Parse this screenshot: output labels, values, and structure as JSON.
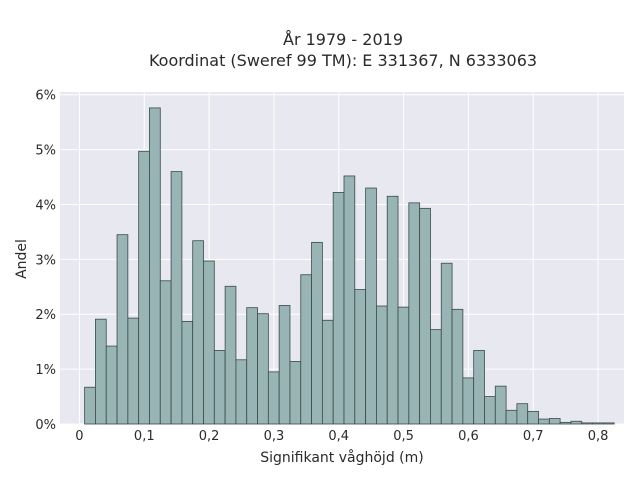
{
  "chart_data": {
    "type": "bar",
    "title_line1": "År 1979 - 2019",
    "title_line2": "Koordinat (Sweref 99 TM): E 331367, N 6333063",
    "xlabel": "Signifikant våghöjd (m)",
    "ylabel": "Andel",
    "bin_width": 0.01667,
    "bin_start": 0.008,
    "xlim": [
      -0.03,
      0.84
    ],
    "ylim": [
      0,
      6.05
    ],
    "x_ticks": [
      0,
      0.1,
      0.2,
      0.3,
      0.4,
      0.5,
      0.6,
      0.7,
      0.8
    ],
    "x_tick_labels": [
      "0",
      "0,1",
      "0,2",
      "0,3",
      "0,4",
      "0,5",
      "0,6",
      "0,7",
      "0,8"
    ],
    "y_ticks": [
      0,
      1,
      2,
      3,
      4,
      5,
      6
    ],
    "y_tick_labels": [
      "0%",
      "1%",
      "2%",
      "3%",
      "4%",
      "5%",
      "6%"
    ],
    "grid": true,
    "colors": {
      "bar_fill": "#98b4b4",
      "bar_stroke": "#3a4a4a",
      "plot_bg": "#e8e8f0",
      "grid": "#ffffff"
    },
    "values": [
      0.67,
      1.91,
      1.42,
      3.45,
      1.93,
      4.97,
      5.76,
      2.61,
      4.6,
      1.87,
      3.34,
      2.97,
      1.34,
      2.51,
      1.17,
      2.12,
      2.01,
      0.95,
      2.16,
      1.14,
      2.72,
      3.31,
      1.89,
      4.22,
      4.52,
      2.45,
      4.3,
      2.15,
      4.15,
      2.13,
      4.03,
      3.93,
      1.72,
      2.93,
      2.09,
      0.84,
      1.34,
      0.5,
      0.69,
      0.25,
      0.37,
      0.23,
      0.09,
      0.1,
      0.03,
      0.05,
      0.02,
      0.02,
      0.02
    ]
  }
}
